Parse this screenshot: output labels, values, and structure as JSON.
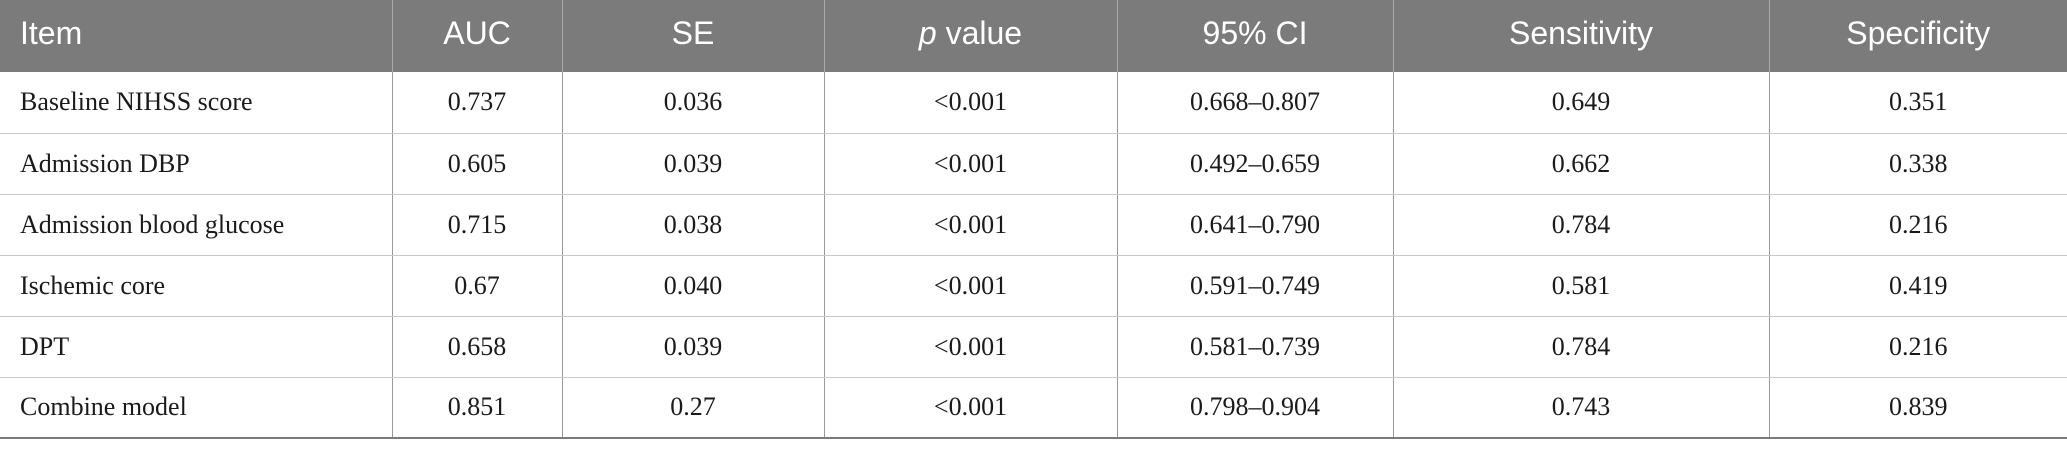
{
  "table": {
    "headers": {
      "item": "Item",
      "auc": "AUC",
      "se": "SE",
      "p_italic": "p",
      "p_rest": " value",
      "ci": "95% CI",
      "sensitivity": "Sensitivity",
      "specificity": "Specificity"
    },
    "rows": [
      {
        "item": "Baseline NIHSS score",
        "auc": "0.737",
        "se": "0.036",
        "p": "<0.001",
        "ci": "0.668–0.807",
        "sensitivity": "0.649",
        "specificity": "0.351"
      },
      {
        "item": "Admission DBP",
        "auc": "0.605",
        "se": "0.039",
        "p": "<0.001",
        "ci": "0.492–0.659",
        "sensitivity": "0.662",
        "specificity": "0.338"
      },
      {
        "item": "Admission blood glucose",
        "auc": "0.715",
        "se": "0.038",
        "p": "<0.001",
        "ci": "0.641–0.790",
        "sensitivity": "0.784",
        "specificity": "0.216"
      },
      {
        "item": "Ischemic core",
        "auc": "0.67",
        "se": "0.040",
        "p": "<0.001",
        "ci": "0.591–0.749",
        "sensitivity": "0.581",
        "specificity": "0.419"
      },
      {
        "item": "DPT",
        "auc": "0.658",
        "se": "0.039",
        "p": "<0.001",
        "ci": "0.581–0.739",
        "sensitivity": "0.784",
        "specificity": "0.216"
      },
      {
        "item": "Combine model",
        "auc": "0.851",
        "se": "0.27",
        "p": "<0.001",
        "ci": "0.798–0.904",
        "sensitivity": "0.743",
        "specificity": "0.839"
      }
    ]
  }
}
